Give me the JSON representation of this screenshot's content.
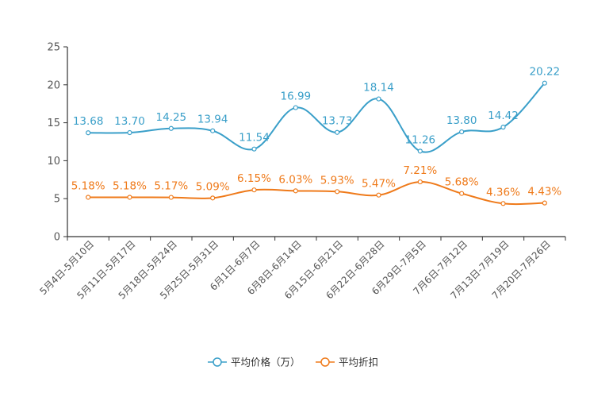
{
  "chart_data": {
    "type": "line",
    "categories": [
      "5月4日-5月10日",
      "5月11日-5月17日",
      "5月18日-5月24日",
      "5月25日-5月31日",
      "6月1日-6月7日",
      "6月8日-6月14日",
      "6月15日-6月21日",
      "6月22日-6月28日",
      "6月29日-7月5日",
      "7月6日-7月12日",
      "7月13日-7月19日",
      "7月20日-7月26日"
    ],
    "series": [
      {
        "name": "平均价格（万）",
        "color": "#3a9fc9",
        "values": [
          13.68,
          13.7,
          14.25,
          13.94,
          11.54,
          16.99,
          13.73,
          18.14,
          11.26,
          13.8,
          14.42,
          20.22
        ],
        "labels": [
          "13.68",
          "13.70",
          "14.25",
          "13.94",
          "11.54",
          "16.99",
          "13.73",
          "18.14",
          "11.26",
          "13.80",
          "14.42",
          "20.22"
        ]
      },
      {
        "name": "平均折扣",
        "color": "#ef7a1a",
        "values": [
          5.18,
          5.18,
          5.17,
          5.09,
          6.15,
          6.03,
          5.93,
          5.47,
          7.21,
          5.68,
          4.36,
          4.43
        ],
        "labels": [
          "5.18%",
          "5.18%",
          "5.17%",
          "5.09%",
          "6.15%",
          "6.03%",
          "5.93%",
          "5.47%",
          "7.21%",
          "5.68%",
          "4.36%",
          "4.43%"
        ]
      }
    ],
    "yticks": [
      "0",
      "5",
      "10",
      "15",
      "20",
      "25"
    ],
    "ylim": [
      0,
      25
    ],
    "title": "",
    "xlabel": "",
    "ylabel": "",
    "grid": false,
    "legend_position": "bottom-center"
  }
}
